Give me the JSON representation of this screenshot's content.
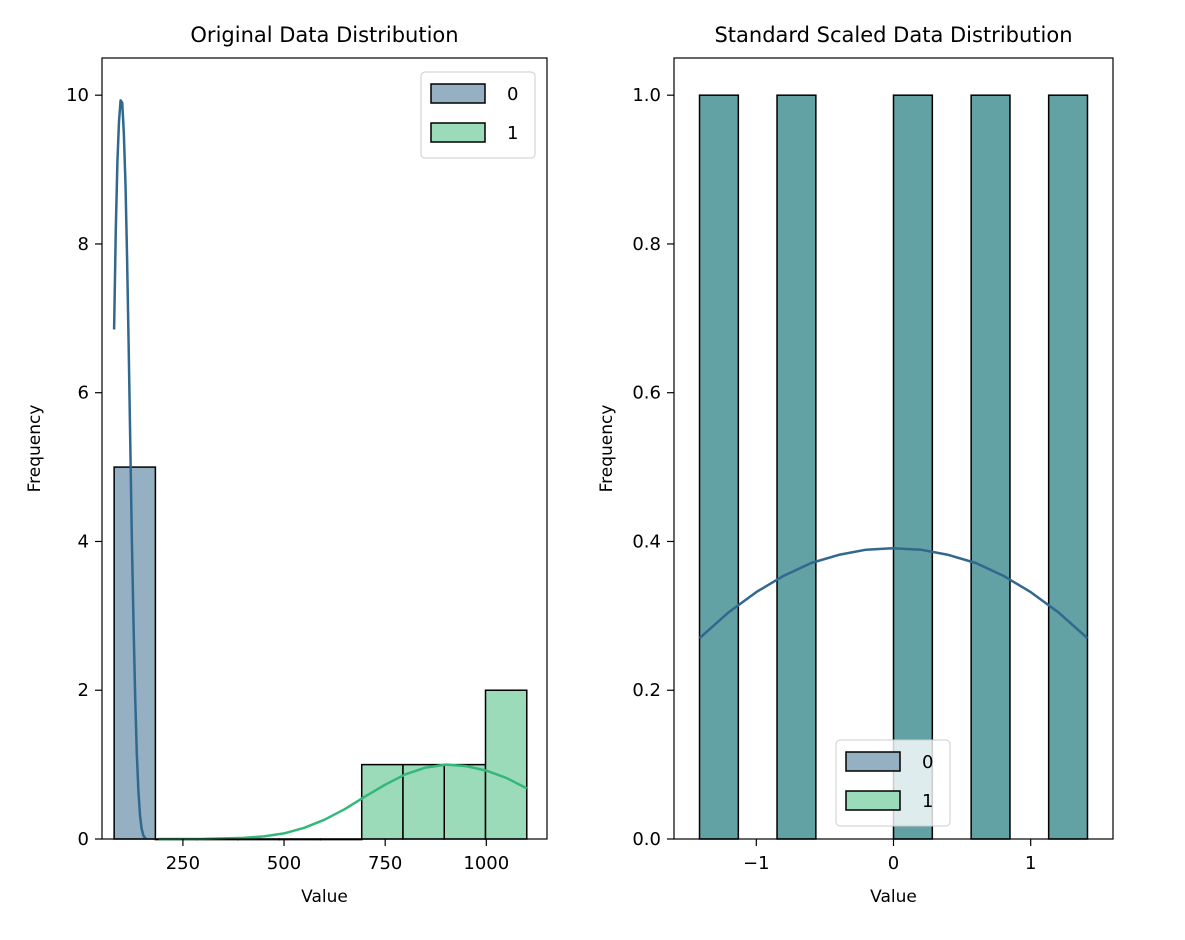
{
  "colors": {
    "series0_fill": "#94b0c2",
    "series1_fill": "#9bdbb9",
    "overlap_fill": "#62a1a4",
    "series0_line": "#31688e",
    "series1_line": "#35b779",
    "edge": "#000000"
  },
  "chart_data": [
    {
      "type": "bar",
      "subtype": "histogram-with-kde",
      "title": "Original Data Distribution",
      "xlabel": "Value",
      "ylabel": "Frequency",
      "xlim": [
        50,
        1150
      ],
      "ylim": [
        0,
        10.5
      ],
      "xticks": [
        250,
        500,
        750,
        1000
      ],
      "yticks": [
        0,
        2,
        4,
        6,
        8,
        10
      ],
      "grid": false,
      "legend": {
        "position": "top-right",
        "entries": [
          "0",
          "1"
        ]
      },
      "bins": [
        {
          "x0": 80,
          "x1": 182,
          "series": "0",
          "count": 5
        },
        {
          "x0": 182,
          "x1": 284,
          "series": "0",
          "count": 0
        },
        {
          "x0": 284,
          "x1": 386,
          "series": "0",
          "count": 0
        },
        {
          "x0": 386,
          "x1": 488,
          "series": "0",
          "count": 0
        },
        {
          "x0": 488,
          "x1": 590,
          "series": "0",
          "count": 0
        },
        {
          "x0": 590,
          "x1": 692,
          "series": "0",
          "count": 0
        },
        {
          "x0": 692,
          "x1": 794,
          "series": "1",
          "count": 1
        },
        {
          "x0": 794,
          "x1": 896,
          "series": "1",
          "count": 1
        },
        {
          "x0": 896,
          "x1": 998,
          "series": "1",
          "count": 1
        },
        {
          "x0": 998,
          "x1": 1100,
          "series": "1",
          "count": 2
        }
      ],
      "kde": [
        {
          "series": "0",
          "x": [
            80,
            84,
            88,
            92,
            96,
            100,
            104,
            108,
            112,
            116,
            120,
            124,
            128,
            132,
            136,
            140,
            144,
            148,
            152,
            156,
            160
          ],
          "y": [
            6.85,
            8.2,
            9.1,
            9.65,
            9.93,
            9.9,
            9.5,
            8.8,
            7.8,
            6.6,
            5.3,
            4.0,
            2.85,
            1.9,
            1.15,
            0.65,
            0.32,
            0.14,
            0.05,
            0.015,
            0.0
          ]
        },
        {
          "series": "1",
          "x": [
            190,
            300,
            400,
            450,
            500,
            550,
            600,
            650,
            700,
            750,
            800,
            850,
            900,
            950,
            1000,
            1050,
            1100
          ],
          "y": [
            0.0,
            0.002,
            0.015,
            0.035,
            0.075,
            0.15,
            0.26,
            0.4,
            0.57,
            0.73,
            0.87,
            0.96,
            1.0,
            0.98,
            0.92,
            0.82,
            0.68
          ]
        }
      ]
    },
    {
      "type": "bar",
      "subtype": "histogram-with-kde",
      "title": "Standard Scaled Data Distribution",
      "xlabel": "Value",
      "ylabel": "Frequency",
      "xlim": [
        -1.6,
        1.6
      ],
      "ylim": [
        0,
        1.05
      ],
      "xticks": [
        -1,
        0,
        1
      ],
      "xtick_labels": [
        "−1",
        "0",
        "1"
      ],
      "yticks": [
        0.0,
        0.2,
        0.4,
        0.6,
        0.8,
        1.0
      ],
      "ytick_labels": [
        "0.0",
        "0.2",
        "0.4",
        "0.6",
        "0.8",
        "1.0"
      ],
      "grid": false,
      "legend": {
        "position": "lower-center",
        "entries": [
          "0",
          "1"
        ]
      },
      "bins": [
        {
          "x0": -1.414,
          "x1": -1.131,
          "count": 1
        },
        {
          "x0": -0.849,
          "x1": -0.566,
          "count": 1
        },
        {
          "x0": 0.0,
          "x1": 0.283,
          "count": 1
        },
        {
          "x0": 0.566,
          "x1": 0.849,
          "count": 1
        },
        {
          "x0": 1.131,
          "x1": 1.414,
          "count": 1
        }
      ],
      "kde": [
        {
          "series": "0",
          "x": [
            -1.414,
            -1.2,
            -1.0,
            -0.8,
            -0.6,
            -0.4,
            -0.2,
            0.0,
            0.2,
            0.4,
            0.6,
            0.8,
            1.0,
            1.2,
            1.414
          ],
          "y": [
            0.27,
            0.305,
            0.332,
            0.354,
            0.371,
            0.382,
            0.389,
            0.391,
            0.389,
            0.382,
            0.371,
            0.354,
            0.332,
            0.305,
            0.27
          ]
        }
      ]
    }
  ]
}
